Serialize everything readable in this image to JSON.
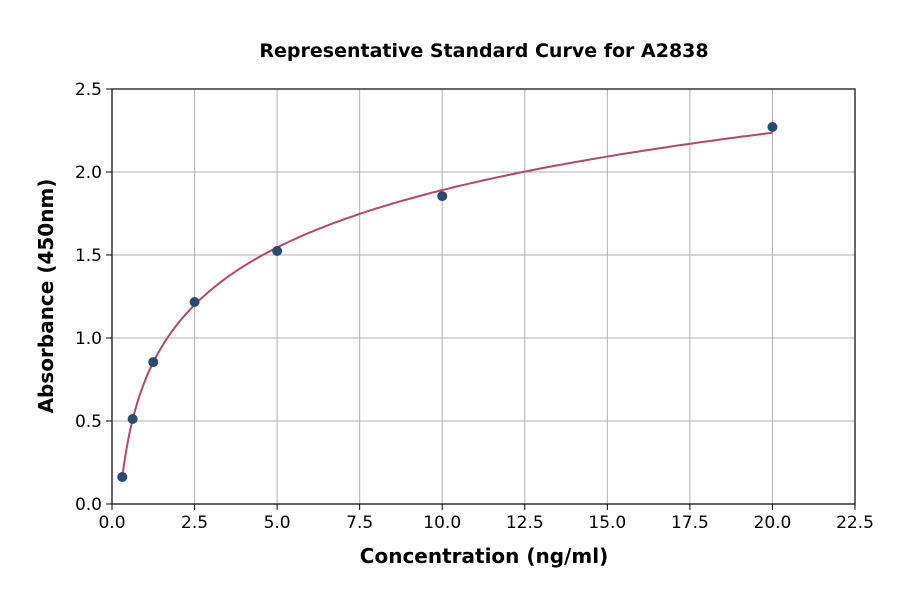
{
  "chart_data": {
    "type": "scatter",
    "title": "Representative Standard Curve for A2838",
    "xlabel": "Concentration (ng/ml)",
    "ylabel": "Absorbance (450nm)",
    "xlim": [
      0,
      22.5
    ],
    "ylim": [
      0,
      2.5
    ],
    "xticks": [
      "0.0",
      "2.5",
      "5.0",
      "7.5",
      "10.0",
      "12.5",
      "15.0",
      "17.5",
      "20.0",
      "22.5"
    ],
    "yticks": [
      "0.0",
      "0.5",
      "1.0",
      "1.5",
      "2.0",
      "2.5"
    ],
    "grid": true,
    "series": [
      {
        "x": [
          0.3125,
          0.625,
          1.25,
          2.5,
          5,
          10,
          20
        ],
        "y": [
          0.163,
          0.512,
          0.855,
          1.217,
          1.524,
          1.855,
          2.271
        ]
      }
    ],
    "fit_curve": "logarithmic",
    "colors": {
      "points": "#2c4a6e",
      "curve": "#b5476b",
      "grid": "#b0b0b0"
    }
  }
}
